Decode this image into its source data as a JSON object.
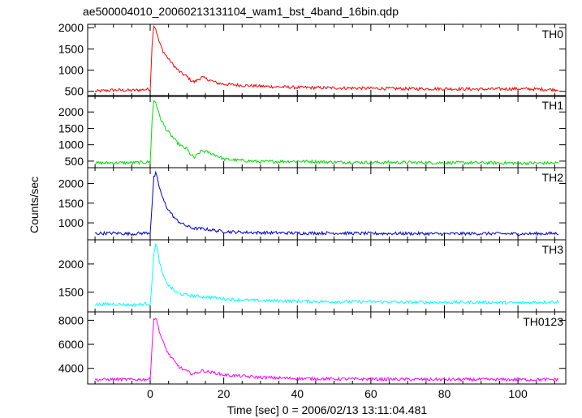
{
  "chart_data": {
    "type": "line",
    "title": "ae500004010_20060213131104_wam1_bst_4band_16bin.qdp",
    "xlabel": "Time [sec] 0 = 2006/02/13 13:11:04.481",
    "ylabel": "Counts/sec",
    "xlim": [
      -17,
      113
    ],
    "xticks": [
      0,
      20,
      40,
      60,
      80,
      100
    ],
    "grid": false,
    "panels": [
      {
        "name": "TH0",
        "color": "#ff0000",
        "ylim": [
          380,
          2080
        ],
        "yticks": [
          500,
          1000,
          1500,
          2000
        ],
        "series": {
          "x": [
            -15,
            -10,
            -5,
            0,
            0.6,
            1,
            1.5,
            2,
            2.5,
            3,
            3.5,
            4,
            4.5,
            5,
            6,
            7,
            8,
            9,
            10,
            11,
            12,
            14,
            16,
            18,
            20,
            25,
            30,
            40,
            50,
            60,
            70,
            80,
            90,
            100,
            110
          ],
          "values": [
            500,
            530,
            520,
            550,
            1750,
            2050,
            1980,
            1800,
            1650,
            1550,
            1450,
            1380,
            1320,
            1260,
            1150,
            1050,
            960,
            900,
            850,
            760,
            720,
            830,
            770,
            700,
            670,
            640,
            620,
            590,
            580,
            570,
            560,
            560,
            550,
            560,
            540
          ]
        }
      },
      {
        "name": "TH1",
        "color": "#00dd00",
        "ylim": [
          300,
          2500
        ],
        "yticks": [
          500,
          1000,
          1500,
          2000
        ],
        "series": {
          "x": [
            -15,
            -10,
            -5,
            0,
            0.6,
            1,
            1.5,
            2,
            2.5,
            3,
            3.5,
            4,
            4.5,
            5,
            6,
            7,
            8,
            9,
            10,
            11,
            12,
            14,
            16,
            18,
            20,
            25,
            30,
            40,
            50,
            60,
            70,
            80,
            90,
            100,
            110
          ],
          "values": [
            440,
            450,
            450,
            470,
            1950,
            2350,
            2300,
            2100,
            1900,
            1750,
            1650,
            1550,
            1450,
            1380,
            1250,
            1100,
            1000,
            920,
            870,
            700,
            600,
            820,
            760,
            680,
            560,
            520,
            480,
            500,
            470,
            460,
            460,
            450,
            450,
            440,
            440
          ]
        }
      },
      {
        "name": "TH2",
        "color": "#0000cc",
        "ylim": [
          570,
          2400
        ],
        "yticks": [
          1000,
          1500,
          2000
        ],
        "series": {
          "x": [
            -15,
            -10,
            -5,
            0,
            0.6,
            1,
            1.5,
            2,
            2.5,
            3,
            3.5,
            4,
            4.5,
            5,
            6,
            7,
            8,
            9,
            10,
            11,
            12,
            14,
            16,
            18,
            20,
            25,
            30,
            40,
            50,
            60,
            70,
            80,
            90,
            100,
            110
          ],
          "values": [
            730,
            740,
            720,
            750,
            1600,
            2150,
            2250,
            2100,
            1900,
            1750,
            1600,
            1500,
            1400,
            1330,
            1200,
            1080,
            1020,
            960,
            920,
            880,
            860,
            850,
            830,
            800,
            780,
            760,
            750,
            740,
            740,
            730,
            730,
            720,
            730,
            720,
            730
          ]
        }
      },
      {
        "name": "TH3",
        "color": "#00ffff",
        "ylim": [
          1150,
          2430
        ],
        "yticks": [
          1500,
          2000
        ],
        "series": {
          "x": [
            -15,
            -10,
            -5,
            0,
            0.6,
            1,
            1.5,
            2,
            2.5,
            3,
            3.5,
            4,
            4.5,
            5,
            6,
            7,
            8,
            9,
            10,
            11,
            12,
            14,
            16,
            18,
            20,
            25,
            30,
            40,
            50,
            60,
            70,
            80,
            90,
            100,
            110
          ],
          "values": [
            1280,
            1290,
            1270,
            1300,
            1750,
            2200,
            2350,
            2250,
            2050,
            1900,
            1800,
            1720,
            1680,
            1620,
            1560,
            1500,
            1470,
            1460,
            1450,
            1440,
            1430,
            1420,
            1410,
            1400,
            1380,
            1360,
            1350,
            1340,
            1330,
            1330,
            1320,
            1320,
            1320,
            1310,
            1330
          ]
        }
      },
      {
        "name": "TH0123",
        "color": "#ff00ff",
        "ylim": [
          2700,
          8700
        ],
        "yticks": [
          4000,
          6000,
          8000
        ],
        "series": {
          "x": [
            -15,
            -10,
            -5,
            0,
            0.6,
            1,
            1.5,
            2,
            2.5,
            3,
            3.5,
            4,
            4.5,
            5,
            6,
            7,
            8,
            9,
            10,
            11,
            12,
            14,
            16,
            18,
            20,
            25,
            30,
            40,
            50,
            60,
            70,
            80,
            90,
            100,
            110
          ],
          "values": [
            3050,
            3080,
            3060,
            3100,
            6500,
            8100,
            8200,
            7700,
            7100,
            6600,
            6200,
            5800,
            5500,
            5200,
            4800,
            4400,
            4100,
            3900,
            3750,
            3600,
            3550,
            3800,
            3700,
            3600,
            3450,
            3350,
            3250,
            3150,
            3120,
            3100,
            3080,
            3070,
            3070,
            3060,
            3070
          ]
        }
      }
    ]
  }
}
